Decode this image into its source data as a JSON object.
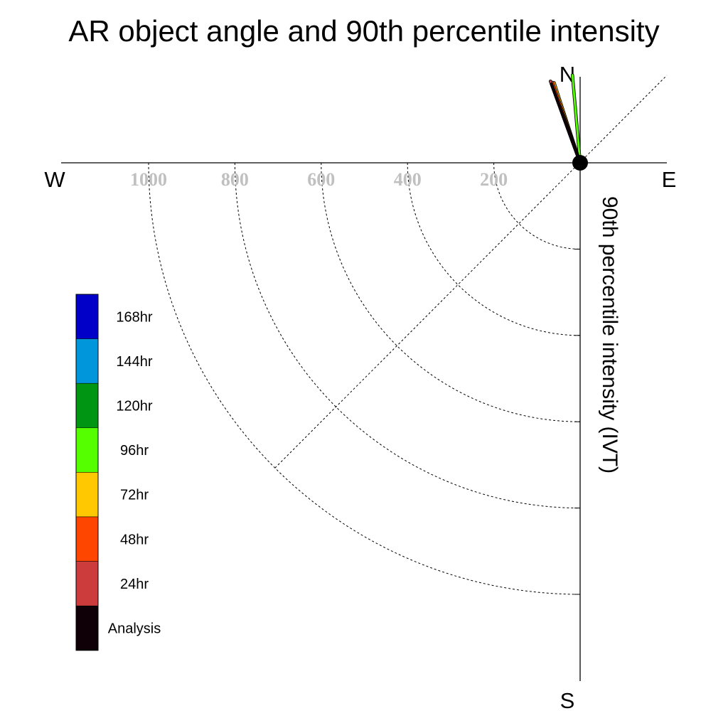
{
  "chart_data": {
    "type": "polar-vector",
    "title": "AR object angle and 90th percentile intensity",
    "ylabel": "90th percentile intensity (IVT)",
    "compass": {
      "north": "N",
      "south": "S",
      "east": "E",
      "west": "W"
    },
    "radial_ticks": [
      "200",
      "400",
      "600",
      "800",
      "1000"
    ],
    "radial_tick_values": [
      200,
      400,
      600,
      800,
      1000
    ],
    "radial_range": [
      0,
      1200
    ],
    "legend": {
      "placement": "left",
      "entries": [
        {
          "label": "168hr",
          "color": "#0000c8"
        },
        {
          "label": "144hr",
          "color": "#0096dc"
        },
        {
          "label": "120hr",
          "color": "#009614"
        },
        {
          "label": "96hr",
          "color": "#55ff00"
        },
        {
          "label": "72hr",
          "color": "#ffc800"
        },
        {
          "label": "48hr",
          "color": "#ff4600"
        },
        {
          "label": "24hr",
          "color": "#cd3c3c"
        },
        {
          "label": "Analysis",
          "color": "#0f0008"
        }
      ]
    },
    "series": [
      {
        "name": "Analysis",
        "color": "#0f0008",
        "angle_deg": -20,
        "intensity": 190
      },
      {
        "name": "24hr",
        "color": "#cd3c3c",
        "angle_deg": -20,
        "intensity": 197
      },
      {
        "name": "48hr",
        "color": "#ff4600",
        "angle_deg": -19,
        "intensity": 193
      },
      {
        "name": "72hr",
        "color": "#ffc800",
        "angle_deg": -18,
        "intensity": 191
      },
      {
        "name": "96hr",
        "color": "#55ff00",
        "angle_deg": -5,
        "intensity": 200
      }
    ]
  }
}
